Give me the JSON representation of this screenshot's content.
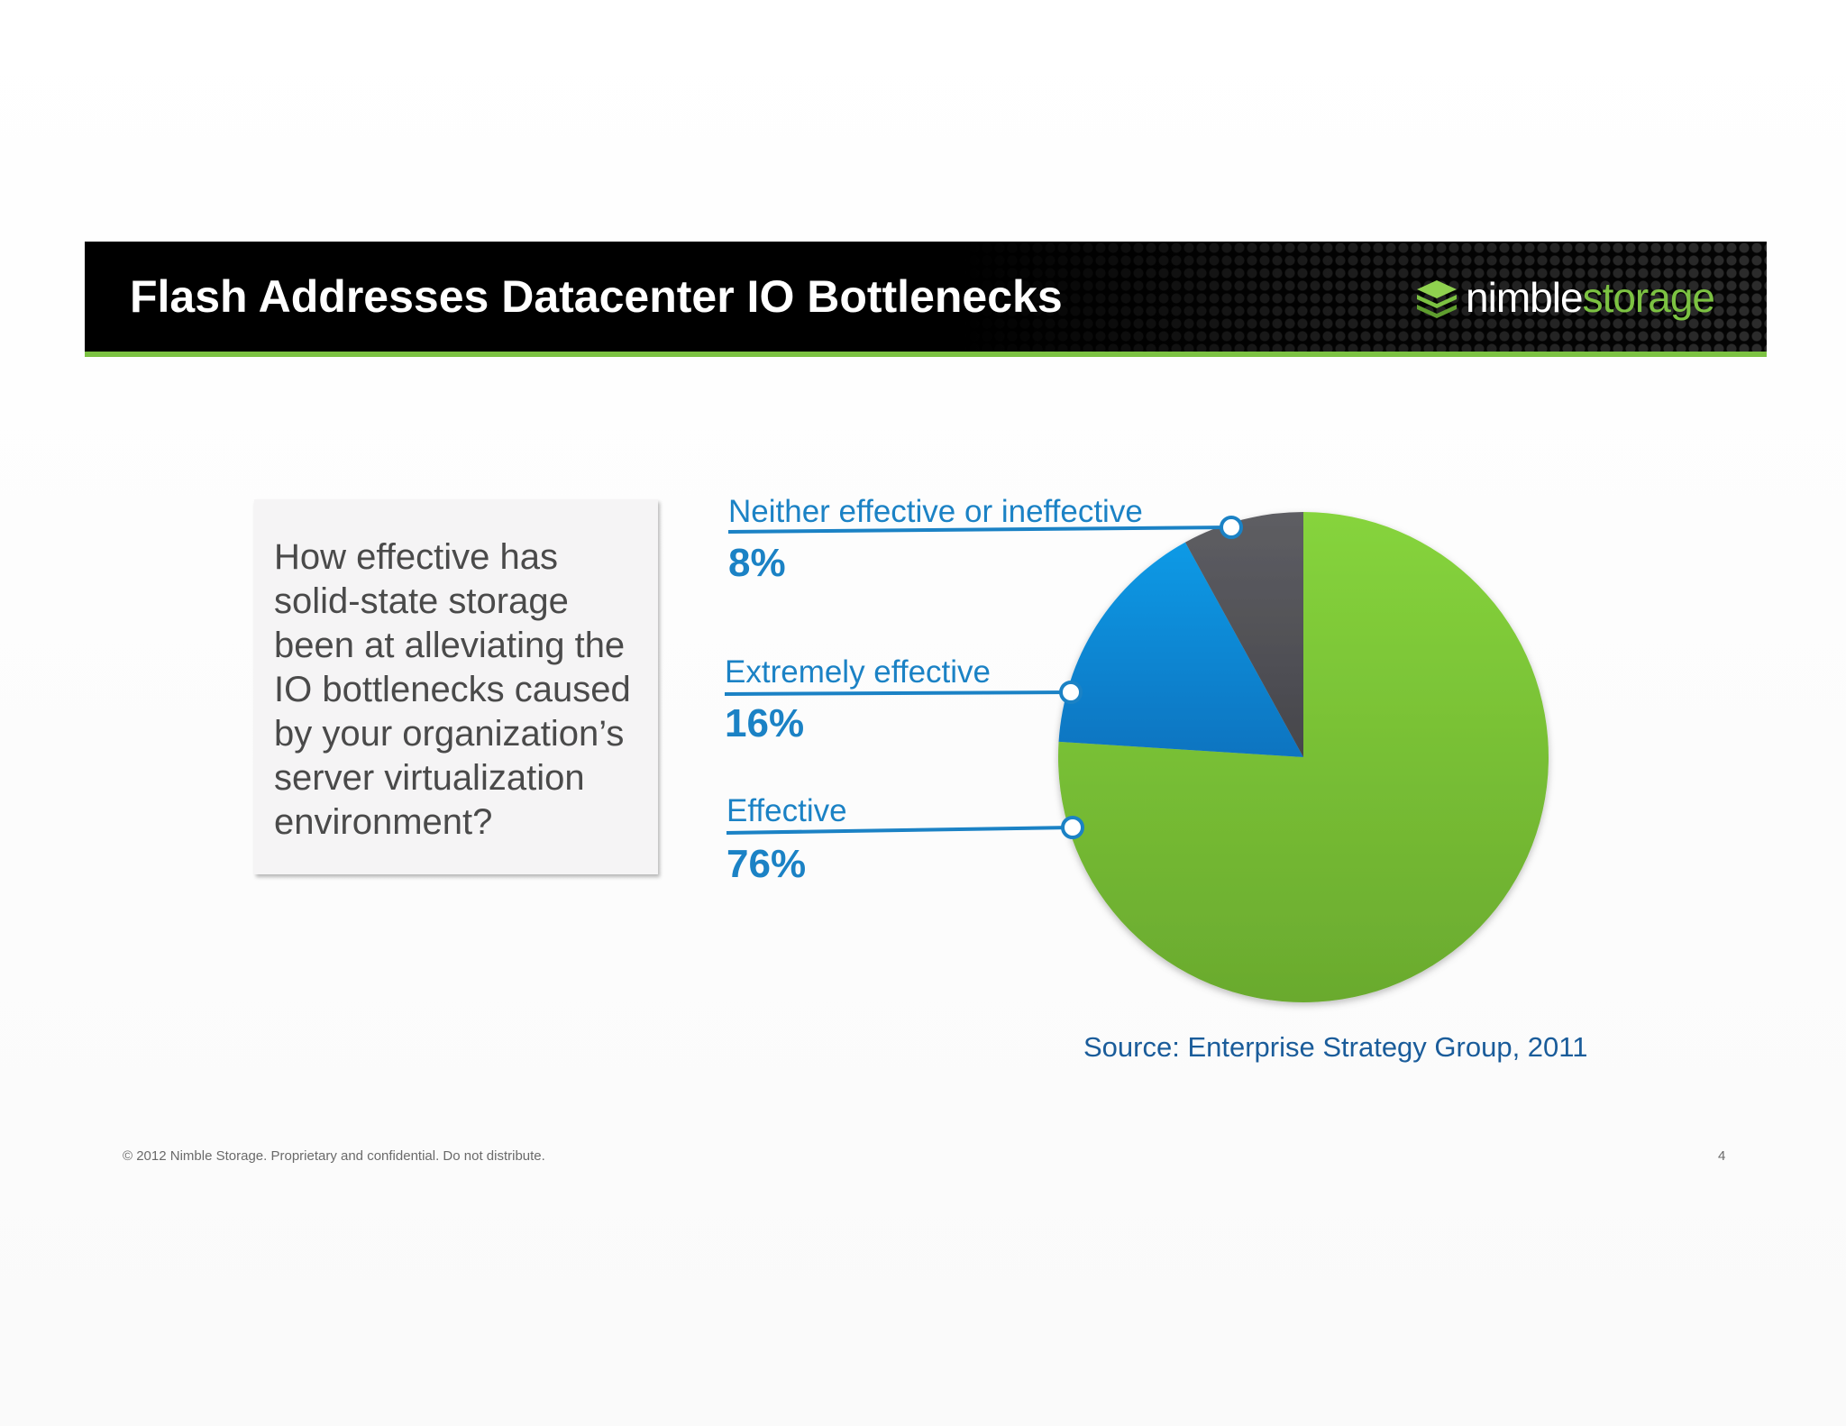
{
  "slide": {
    "title": "Flash Addresses Datacenter IO Bottlenecks",
    "logo": {
      "text_white": "nimble",
      "text_green": "storage",
      "icon": "layered-stack-icon"
    },
    "question": "How effective has solid-state storage been at alleviating the IO bottlenecks caused by your organization’s server virtualization environment?",
    "source": "Source: Enterprise Strategy Group, 2011",
    "footer": "© 2012 Nimble Storage. Proprietary and confidential. Do not distribute.",
    "page_number": "4"
  },
  "colors": {
    "accent_green": "#7cc242",
    "label_blue": "#1b82c5",
    "slice_effective": "#7cc242",
    "slice_extremely": "#0a8ad6",
    "slice_neither": "#545459"
  },
  "chart_data": {
    "type": "pie",
    "title": "",
    "start_angle_deg": 0,
    "direction": "counterclockwise",
    "slices": [
      {
        "label": "Effective",
        "value": 76,
        "value_label": "76%",
        "color": "#7cc242"
      },
      {
        "label": "Extremely effective",
        "value": 16,
        "value_label": "16%",
        "color": "#0a8ad6"
      },
      {
        "label": "Neither effective or ineffective",
        "value": 8,
        "value_label": "8%",
        "color": "#545459"
      }
    ],
    "legend": "left, with leader lines"
  }
}
